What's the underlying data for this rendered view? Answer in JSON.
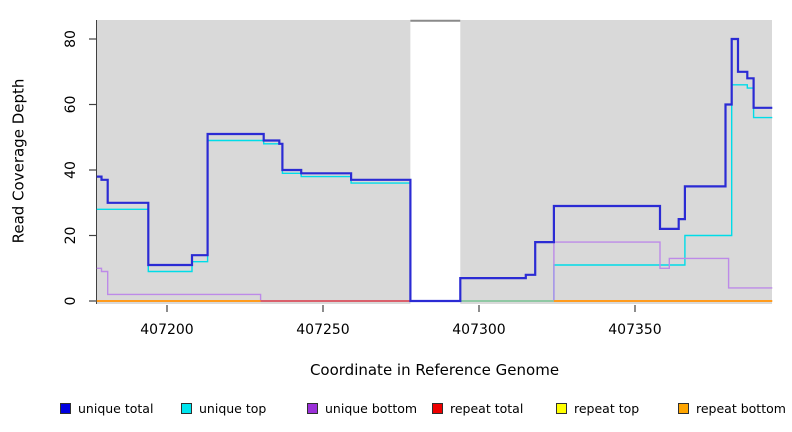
{
  "chart_data": {
    "type": "line",
    "subtype": "step-coverage",
    "title": "",
    "xlabel": "Coordinate in Reference Genome",
    "ylabel": "Read Coverage Depth",
    "xlim": [
      407177.5,
      407394
    ],
    "ylim": [
      0,
      85
    ],
    "x_ticks": [
      407200,
      407250,
      407300,
      407350
    ],
    "y_ticks": [
      0,
      20,
      40,
      60,
      80
    ],
    "grid": false,
    "plot_background": "#d9d9d9",
    "gap_region": {
      "from": 407278,
      "to": 407294,
      "fill": "#ffffff",
      "top_bar_color": "#8a8a8a",
      "note": "no-data gap band"
    },
    "series": [
      {
        "name": "unique top",
        "color": "#00dce8",
        "width": 1.4,
        "end": 407394,
        "steps": [
          [
            407177.5,
            28
          ],
          [
            407194,
            9
          ],
          [
            407208,
            12
          ],
          [
            407213,
            49
          ],
          [
            407231,
            48
          ],
          [
            407237,
            39
          ],
          [
            407243,
            38
          ],
          [
            407259,
            36
          ],
          [
            407278,
            0
          ],
          [
            407324,
            11
          ],
          [
            407366,
            20
          ],
          [
            407381,
            66
          ],
          [
            407386,
            65
          ],
          [
            407388,
            56
          ]
        ]
      },
      {
        "name": "unique bottom",
        "color": "#bd8ae8",
        "width": 1.4,
        "end": 407394,
        "steps": [
          [
            407177.5,
            10
          ],
          [
            407179,
            9
          ],
          [
            407181,
            2
          ],
          [
            407230,
            0
          ],
          [
            407324,
            18
          ],
          [
            407358,
            10
          ],
          [
            407361,
            13
          ],
          [
            407380,
            4
          ]
        ]
      },
      {
        "name": "unique total",
        "color": "#2b2bd4",
        "width": 2.2,
        "end": 407394,
        "steps": [
          [
            407177.5,
            38
          ],
          [
            407179,
            37
          ],
          [
            407181,
            30
          ],
          [
            407194,
            11
          ],
          [
            407208,
            14
          ],
          [
            407213,
            51
          ],
          [
            407231,
            49
          ],
          [
            407236,
            48
          ],
          [
            407237,
            40
          ],
          [
            407243,
            39
          ],
          [
            407259,
            37
          ],
          [
            407278,
            0
          ],
          [
            407294,
            7
          ],
          [
            407315,
            8
          ],
          [
            407318,
            18
          ],
          [
            407324,
            29
          ],
          [
            407358,
            22
          ],
          [
            407364,
            25
          ],
          [
            407366,
            35
          ],
          [
            407379,
            60
          ],
          [
            407381,
            80
          ],
          [
            407383,
            70
          ],
          [
            407386,
            68
          ],
          [
            407388,
            59
          ]
        ]
      }
    ],
    "zero_level_segments": [
      {
        "name": "repeat bottom",
        "color": "#ff9b1e",
        "width": 2,
        "from": 407177.5,
        "to": 407230,
        "value": 0
      },
      {
        "name": "repeat total",
        "color": "#e04545",
        "width": 1.6,
        "from": 407230,
        "to": 407278,
        "value": 0
      },
      {
        "name": "repeat top over unique top overlap",
        "color": "#8ecf8e",
        "width": 1.6,
        "from": 407294,
        "to": 407324,
        "value": 0
      },
      {
        "name": "repeat bottom",
        "color": "#ff9b1e",
        "width": 2,
        "from": 407324,
        "to": 407394,
        "value": 0
      }
    ]
  },
  "legend": {
    "items": [
      {
        "label": "unique total",
        "color": "#0000e0"
      },
      {
        "label": "unique top",
        "color": "#00e5ee"
      },
      {
        "label": "unique bottom",
        "color": "#9b30d9"
      },
      {
        "label": "repeat total",
        "color": "#ee0000"
      },
      {
        "label": "repeat top",
        "color": "#ffff00"
      },
      {
        "label": "repeat bottom",
        "color": "#ffa500"
      }
    ],
    "item_x_positions": [
      60,
      181,
      307,
      432,
      556,
      678
    ]
  }
}
